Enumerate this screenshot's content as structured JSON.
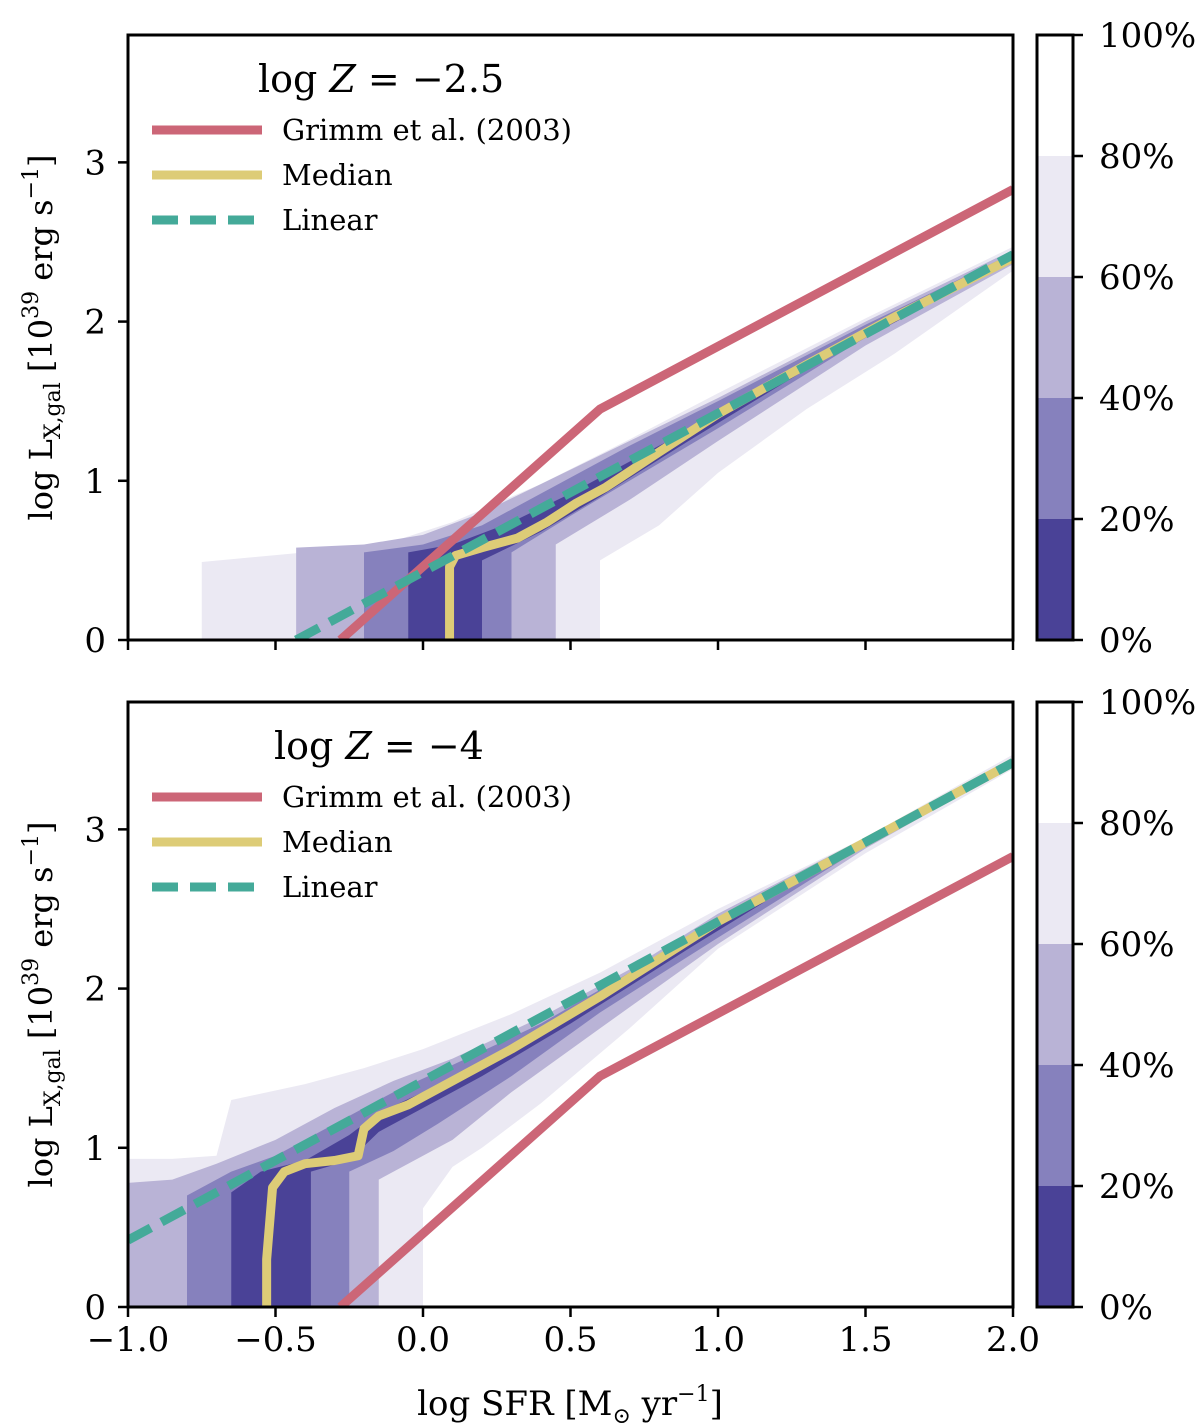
{
  "chart_data": [
    {
      "type": "line",
      "panel": "top",
      "title_prefix": "log ",
      "title_var": "Z",
      "title_value": " = −2.5",
      "xlabel_prefix": "log SFR [M",
      "xlabel_sub": "⊙",
      "xlabel_mid": " yr",
      "xlabel_sup": "−1",
      "xlabel_suffix": "]",
      "ylabel_prefix": "log L",
      "ylabel_sub": "X,gal",
      "ylabel_mid": " [10",
      "ylabel_sup": "39",
      "ylabel_unit": " erg s",
      "ylabel_sup2": "−1",
      "ylabel_suffix": "]",
      "xlim": [
        -1.0,
        2.0
      ],
      "ylim": [
        0,
        3.8
      ],
      "xticks": [
        -1.0,
        -0.5,
        0.0,
        0.5,
        1.0,
        1.5,
        2.0
      ],
      "xtick_labels": [
        "",
        "",
        "",
        "",
        "",
        "",
        ""
      ],
      "yticks": [
        0,
        1,
        2,
        3
      ],
      "ytick_labels": [
        "0",
        "1",
        "2",
        "3"
      ],
      "legend_location": "upper-left",
      "series": [
        {
          "name": "Grimm et al. (2003)",
          "color": "#cc6677",
          "style": "solid",
          "x": [
            -0.28,
            0.6,
            2.0
          ],
          "y": [
            0.0,
            1.45,
            2.83
          ]
        },
        {
          "name": "Median",
          "color": "#ddcc77",
          "style": "solid",
          "x": [
            0.09,
            0.09,
            0.11,
            0.2,
            0.32,
            0.42,
            0.52,
            0.62,
            0.8,
            1.0,
            1.3,
            1.6,
            2.0
          ],
          "y": [
            0.0,
            0.46,
            0.53,
            0.58,
            0.64,
            0.74,
            0.86,
            0.96,
            1.18,
            1.42,
            1.73,
            2.03,
            2.4
          ]
        },
        {
          "name": "Linear",
          "color": "#44aa99",
          "style": "dashed",
          "x": [
            -0.43,
            2.0
          ],
          "y": [
            0.0,
            2.42
          ]
        }
      ],
      "contour_bands": [
        {
          "label": "80%",
          "color": "#ebe9f3",
          "upper": [
            [
              -0.75,
              0.49
            ],
            [
              -0.4,
              0.55
            ],
            [
              -0.1,
              0.62
            ],
            [
              0.1,
              0.74
            ],
            [
              0.4,
              0.98
            ],
            [
              0.7,
              1.26
            ],
            [
              1.0,
              1.55
            ],
            [
              1.5,
              2.02
            ],
            [
              2.0,
              2.47
            ]
          ],
          "lower": [
            [
              -0.75,
              0.0
            ],
            [
              0.6,
              0.0
            ],
            [
              0.6,
              0.5
            ],
            [
              0.8,
              0.72
            ],
            [
              1.0,
              1.05
            ],
            [
              1.3,
              1.45
            ],
            [
              1.6,
              1.8
            ],
            [
              2.0,
              2.32
            ]
          ]
        },
        {
          "label": "60%",
          "color": "#b9b3d6",
          "upper": [
            [
              -0.43,
              0.58
            ],
            [
              -0.2,
              0.6
            ],
            [
              0.0,
              0.66
            ],
            [
              0.2,
              0.8
            ],
            [
              0.4,
              0.98
            ],
            [
              0.7,
              1.25
            ],
            [
              1.0,
              1.52
            ],
            [
              1.5,
              2.0
            ],
            [
              2.0,
              2.45
            ]
          ],
          "lower": [
            [
              -0.43,
              0.0
            ],
            [
              0.45,
              0.0
            ],
            [
              0.45,
              0.6
            ],
            [
              0.7,
              0.88
            ],
            [
              1.0,
              1.25
            ],
            [
              1.5,
              1.85
            ],
            [
              2.0,
              2.36
            ]
          ]
        },
        {
          "label": "40%",
          "color": "#8681bd",
          "upper": [
            [
              -0.2,
              0.55
            ],
            [
              0.0,
              0.6
            ],
            [
              0.2,
              0.72
            ],
            [
              0.4,
              0.92
            ],
            [
              0.7,
              1.22
            ],
            [
              1.0,
              1.5
            ],
            [
              1.5,
              1.98
            ],
            [
              2.0,
              2.43
            ]
          ],
          "lower": [
            [
              -0.2,
              0.0
            ],
            [
              0.3,
              0.0
            ],
            [
              0.3,
              0.55
            ],
            [
              0.5,
              0.78
            ],
            [
              0.7,
              1.0
            ],
            [
              1.0,
              1.33
            ],
            [
              1.5,
              1.9
            ],
            [
              2.0,
              2.38
            ]
          ]
        },
        {
          "label": "20%",
          "color": "#4a4297",
          "upper": [
            [
              -0.05,
              0.55
            ],
            [
              0.1,
              0.6
            ],
            [
              0.3,
              0.74
            ],
            [
              0.5,
              0.92
            ],
            [
              0.8,
              1.22
            ],
            [
              1.2,
              1.6
            ],
            [
              1.6,
              2.02
            ],
            [
              2.0,
              2.41
            ]
          ],
          "lower": [
            [
              -0.05,
              0.0
            ],
            [
              0.2,
              0.0
            ],
            [
              0.2,
              0.5
            ],
            [
              0.4,
              0.68
            ],
            [
              0.6,
              0.9
            ],
            [
              0.9,
              1.25
            ],
            [
              1.3,
              1.7
            ],
            [
              2.0,
              2.39
            ]
          ]
        }
      ],
      "colorbar": {
        "ticks": [
          0,
          20,
          40,
          60,
          80,
          100
        ],
        "tick_labels": [
          "0%",
          "20%",
          "40%",
          "60%",
          "80%",
          "100%"
        ],
        "levels": [
          {
            "from": 0,
            "to": 20,
            "color": "#4a4297"
          },
          {
            "from": 20,
            "to": 40,
            "color": "#8681bd"
          },
          {
            "from": 40,
            "to": 60,
            "color": "#b9b3d6"
          },
          {
            "from": 60,
            "to": 80,
            "color": "#ebe9f3"
          },
          {
            "from": 80,
            "to": 100,
            "color": "#ffffff"
          }
        ]
      }
    },
    {
      "type": "line",
      "panel": "bottom",
      "title_prefix": "log ",
      "title_var": "Z",
      "title_value": " = −4",
      "xlabel_prefix": "log SFR [M",
      "xlabel_sub": "⊙",
      "xlabel_mid": " yr",
      "xlabel_sup": "−1",
      "xlabel_suffix": "]",
      "ylabel_prefix": "log L",
      "ylabel_sub": "X,gal",
      "ylabel_mid": " [10",
      "ylabel_sup": "39",
      "ylabel_unit": " erg s",
      "ylabel_sup2": "−1",
      "ylabel_suffix": "]",
      "xlim": [
        -1.0,
        2.0
      ],
      "ylim": [
        0,
        3.8
      ],
      "xticks": [
        -1.0,
        -0.5,
        0.0,
        0.5,
        1.0,
        1.5,
        2.0
      ],
      "xtick_labels": [
        "−1.0",
        "−0.5",
        "0.0",
        "0.5",
        "1.0",
        "1.5",
        "2.0"
      ],
      "yticks": [
        0,
        1,
        2,
        3
      ],
      "ytick_labels": [
        "0",
        "1",
        "2",
        "3"
      ],
      "legend_location": "upper-left",
      "series": [
        {
          "name": "Grimm et al. (2003)",
          "color": "#cc6677",
          "style": "solid",
          "x": [
            -0.28,
            0.6,
            2.0
          ],
          "y": [
            0.0,
            1.45,
            2.83
          ]
        },
        {
          "name": "Median",
          "color": "#ddcc77",
          "style": "solid",
          "x": [
            -0.53,
            -0.53,
            -0.51,
            -0.47,
            -0.4,
            -0.3,
            -0.22,
            -0.2,
            -0.15,
            -0.05,
            0.1,
            0.3,
            0.6,
            1.0,
            1.5,
            2.0
          ],
          "y": [
            0.0,
            0.3,
            0.75,
            0.85,
            0.9,
            0.92,
            0.95,
            1.12,
            1.2,
            1.27,
            1.42,
            1.62,
            1.95,
            2.42,
            2.92,
            3.42
          ]
        },
        {
          "name": "Linear",
          "color": "#44aa99",
          "style": "dashed",
          "x": [
            -1.0,
            2.0
          ],
          "y": [
            0.42,
            3.42
          ]
        }
      ],
      "contour_bands": [
        {
          "label": "80%",
          "color": "#ebe9f3",
          "upper": [
            [
              -1.0,
              0.93
            ],
            [
              -0.85,
              0.93
            ],
            [
              -0.85,
              0.93
            ],
            [
              -0.7,
              0.95
            ],
            [
              -0.65,
              1.3
            ],
            [
              -0.4,
              1.4
            ],
            [
              -0.2,
              1.5
            ],
            [
              0.0,
              1.62
            ],
            [
              0.3,
              1.84
            ],
            [
              0.6,
              2.1
            ],
            [
              1.0,
              2.5
            ],
            [
              1.5,
              2.95
            ],
            [
              2.0,
              3.47
            ]
          ],
          "lower": [
            [
              -1.0,
              0.0
            ],
            [
              0.0,
              0.0
            ],
            [
              0.0,
              0.62
            ],
            [
              0.1,
              0.88
            ],
            [
              0.2,
              1.0
            ],
            [
              0.4,
              1.28
            ],
            [
              0.7,
              1.75
            ],
            [
              1.0,
              2.25
            ],
            [
              1.5,
              2.85
            ],
            [
              2.0,
              3.38
            ]
          ]
        },
        {
          "label": "60%",
          "color": "#b9b3d6",
          "upper": [
            [
              -1.0,
              0.78
            ],
            [
              -0.85,
              0.8
            ],
            [
              -0.7,
              0.9
            ],
            [
              -0.5,
              1.05
            ],
            [
              -0.3,
              1.25
            ],
            [
              -0.1,
              1.42
            ],
            [
              0.1,
              1.56
            ],
            [
              0.4,
              1.82
            ],
            [
              0.7,
              2.12
            ],
            [
              1.0,
              2.47
            ],
            [
              1.5,
              2.95
            ],
            [
              2.0,
              3.45
            ]
          ],
          "lower": [
            [
              -1.0,
              0.0
            ],
            [
              -0.15,
              0.0
            ],
            [
              -0.15,
              0.8
            ],
            [
              0.0,
              0.95
            ],
            [
              0.1,
              1.05
            ],
            [
              0.3,
              1.35
            ],
            [
              0.6,
              1.75
            ],
            [
              1.0,
              2.28
            ],
            [
              1.5,
              2.88
            ],
            [
              2.0,
              3.4
            ]
          ]
        },
        {
          "label": "40%",
          "color": "#8681bd",
          "upper": [
            [
              -0.8,
              0.7
            ],
            [
              -0.65,
              0.85
            ],
            [
              -0.5,
              0.95
            ],
            [
              -0.3,
              1.15
            ],
            [
              -0.1,
              1.35
            ],
            [
              0.1,
              1.52
            ],
            [
              0.4,
              1.78
            ],
            [
              0.7,
              2.1
            ],
            [
              1.0,
              2.45
            ],
            [
              1.5,
              2.94
            ],
            [
              2.0,
              3.44
            ]
          ],
          "lower": [
            [
              -0.8,
              0.0
            ],
            [
              -0.25,
              0.0
            ],
            [
              -0.25,
              0.85
            ],
            [
              -0.1,
              0.98
            ],
            [
              0.05,
              1.15
            ],
            [
              0.3,
              1.45
            ],
            [
              0.6,
              1.85
            ],
            [
              1.0,
              2.32
            ],
            [
              1.5,
              2.9
            ],
            [
              2.0,
              3.41
            ]
          ]
        },
        {
          "label": "20%",
          "color": "#4a4297",
          "upper": [
            [
              -0.65,
              0.72
            ],
            [
              -0.55,
              0.85
            ],
            [
              -0.4,
              0.92
            ],
            [
              -0.25,
              1.08
            ],
            [
              -0.15,
              1.22
            ],
            [
              0.0,
              1.35
            ],
            [
              0.2,
              1.55
            ],
            [
              0.5,
              1.85
            ],
            [
              0.8,
              2.18
            ],
            [
              1.2,
              2.63
            ],
            [
              1.6,
              3.03
            ],
            [
              2.0,
              3.43
            ]
          ],
          "lower": [
            [
              -0.65,
              0.0
            ],
            [
              -0.38,
              0.0
            ],
            [
              -0.38,
              0.85
            ],
            [
              -0.25,
              0.92
            ],
            [
              -0.15,
              1.1
            ],
            [
              0.0,
              1.25
            ],
            [
              0.2,
              1.45
            ],
            [
              0.5,
              1.78
            ],
            [
              0.9,
              2.25
            ],
            [
              1.4,
              2.82
            ],
            [
              2.0,
              3.41
            ]
          ]
        }
      ],
      "colorbar": {
        "ticks": [
          0,
          20,
          40,
          60,
          80,
          100
        ],
        "tick_labels": [
          "0%",
          "20%",
          "40%",
          "60%",
          "80%",
          "100%"
        ],
        "levels": [
          {
            "from": 0,
            "to": 20,
            "color": "#4a4297"
          },
          {
            "from": 20,
            "to": 40,
            "color": "#8681bd"
          },
          {
            "from": 40,
            "to": 60,
            "color": "#b9b3d6"
          },
          {
            "from": 60,
            "to": 80,
            "color": "#ebe9f3"
          },
          {
            "from": 80,
            "to": 100,
            "color": "#ffffff"
          }
        ]
      }
    }
  ]
}
